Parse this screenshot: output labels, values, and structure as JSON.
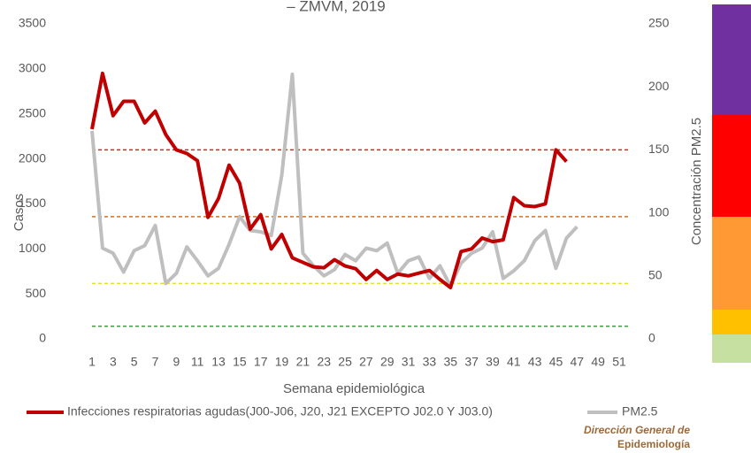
{
  "chart_data": {
    "type": "line",
    "title": "– ZMVM, 2019",
    "xlabel": "Semana epidemiológica",
    "ylabel": "Casos",
    "y2label": "Concentración PM2.5",
    "x": [
      1,
      2,
      3,
      4,
      5,
      6,
      7,
      8,
      9,
      10,
      11,
      12,
      13,
      14,
      15,
      16,
      17,
      18,
      19,
      20,
      21,
      22,
      23,
      24,
      25,
      26,
      27,
      28,
      29,
      30,
      31,
      32,
      33,
      34,
      35,
      36,
      37,
      38,
      39,
      40,
      41,
      42,
      43,
      44,
      45,
      46,
      47
    ],
    "xlim": [
      1,
      51
    ],
    "xticks": [
      1,
      3,
      5,
      7,
      9,
      11,
      13,
      15,
      17,
      19,
      21,
      23,
      25,
      27,
      29,
      31,
      33,
      35,
      37,
      39,
      41,
      43,
      45,
      47,
      49,
      51
    ],
    "ylim": [
      0,
      3500
    ],
    "yticks": [
      0,
      500,
      1000,
      1500,
      2000,
      2500,
      3000,
      3500
    ],
    "y2lim": [
      0,
      250
    ],
    "y2ticks": [
      0,
      50,
      100,
      150,
      200,
      250
    ],
    "series": [
      {
        "name": "Infecciones respiratorias agudas(J00-J06, J20, J21 EXCEPTO J02.0 Y J03.0)",
        "color": "#c00000",
        "values": [
          2330,
          2950,
          2480,
          2640,
          2640,
          2400,
          2530,
          2270,
          2100,
          2060,
          1980,
          1350,
          1560,
          1930,
          1730,
          1220,
          1380,
          1000,
          1160,
          900,
          850,
          800,
          790,
          880,
          810,
          780,
          660,
          760,
          660,
          720,
          700,
          730,
          760,
          660,
          570,
          970,
          1000,
          1120,
          1080,
          1100,
          1570,
          1480,
          1470,
          1500,
          2100,
          1970,
          null
        ]
      },
      {
        "name": "PM2.5",
        "color": "#bfbfbf",
        "axis": "y2",
        "values": [
          165,
          72,
          68,
          53,
          70,
          74,
          90,
          44,
          52,
          73,
          62,
          50,
          56,
          75,
          97,
          86,
          85,
          82,
          130,
          210,
          68,
          58,
          50,
          55,
          67,
          62,
          72,
          70,
          76,
          52,
          62,
          65,
          48,
          58,
          42,
          60,
          68,
          72,
          85,
          48,
          54,
          62,
          78,
          86,
          56,
          80,
          89
        ]
      }
    ],
    "reference_lines": [
      {
        "value": 150,
        "color": "#e02020"
      },
      {
        "value": 97,
        "color": "#d07020"
      },
      {
        "value": 44,
        "color": "#e8e020"
      },
      {
        "value": 10,
        "color": "#40a040"
      }
    ],
    "annotations": [
      "Dirección General de",
      "Epidemiología"
    ]
  }
}
